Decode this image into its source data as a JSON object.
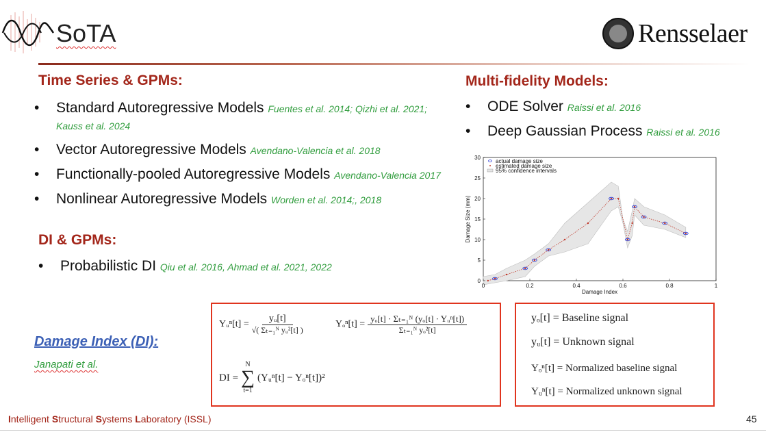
{
  "header": {
    "title": "SoTA",
    "brand": "Rensselaer",
    "logo_icon": "wave-icon",
    "seal_icon": "rpi-seal-icon"
  },
  "left": {
    "section1": {
      "heading": "Time Series & GPMs:",
      "items": [
        {
          "text": "Standard Autoregressive Models",
          "cite": "Fuentes et al. 2014; Qizhi et al. 2021; Kauss et al. 2024"
        },
        {
          "text": "Vector Autoregressive Models",
          "cite": "Avendano-Valencia et al. 2018"
        },
        {
          "text": "Functionally-pooled Autoregressive Models",
          "cite": "Avendano-Valencia 2017"
        },
        {
          "text": "Nonlinear Autoregressive Models",
          "cite": "Worden et al. 2014;, 2018"
        }
      ]
    },
    "section2": {
      "heading": "DI & GPMs:",
      "items": [
        {
          "text": "Probabilistic DI",
          "cite": "Qiu et al. 2016, Ahmad et al. 2021, 2022"
        }
      ]
    }
  },
  "right": {
    "heading": "Multi-fidelity Models:",
    "items": [
      {
        "text": "ODE Solver",
        "cite": "Raissi et al. 2016"
      },
      {
        "text": "Deep Gaussian Process",
        "cite": "Raissi et al. 2016"
      }
    ]
  },
  "damage_index": {
    "title": "Damage Index (DI):",
    "author": "Janapati et al."
  },
  "formulas": {
    "yu_lhs": "Yᵤⁿ[t] =",
    "yu_num": "yᵤ[t]",
    "yu_den": "√( Σₜ₌₁ᴺ yᵤ²[t] )",
    "yo_lhs": "Yₒⁿ[t] =",
    "yo_num": "yₒ[t] · Σₜ₌₁ᴺ (yₒ[t] · Yᵤⁿ[t])",
    "yo_den": "Σₜ₌₁ᴺ yₒ²[t]",
    "di_lhs": "DI =",
    "di_sum_top": "N",
    "di_sum_bottom": "t=1",
    "di_body": "(Yᵤⁿ[t] − Yₒⁿ[t])²"
  },
  "legend_defs": [
    {
      "sym": "yₒ[t]",
      "text": "= Baseline signal"
    },
    {
      "sym": "yᵤ[t]",
      "text": "= Unknown signal"
    },
    {
      "sym": "Yₒⁿ[t]",
      "text": "= Normalized baseline signal"
    },
    {
      "sym": "Yᵤⁿ[t]",
      "text": "= Normalized unknown signal"
    }
  ],
  "footer": {
    "lab_parts": [
      "I",
      "ntelligent ",
      "S",
      "tructural ",
      "S",
      "ystems ",
      "L",
      "aboratory (ISSL)"
    ],
    "page": "45"
  },
  "chart_data": {
    "type": "scatter",
    "xlabel": "Damage Index",
    "ylabel": "Damage Size (mm)",
    "xlim": [
      0,
      1
    ],
    "ylim": [
      0,
      30
    ],
    "xticks": [
      0,
      0.2,
      0.4,
      0.6,
      0.8,
      1
    ],
    "xtick_labels": [
      "0",
      "0.2",
      "0.4",
      "0.6",
      "0.8",
      "1"
    ],
    "yticks": [
      0,
      5,
      10,
      15,
      20,
      25,
      30
    ],
    "legend": [
      "actual damage size",
      "estimated damage size",
      "95% confidence intervals"
    ],
    "legend_position": "top-left",
    "series": [
      {
        "name": "actual damage size",
        "x": [
          0.05,
          0.18,
          0.22,
          0.28,
          0.55,
          0.62,
          0.65,
          0.69,
          0.78,
          0.87
        ],
        "y": [
          0.5,
          3,
          5,
          7.5,
          20,
          10,
          18,
          15.5,
          14,
          11.5
        ]
      },
      {
        "name": "estimated damage size",
        "x": [
          0.02,
          0.05,
          0.1,
          0.18,
          0.22,
          0.28,
          0.35,
          0.45,
          0.55,
          0.58,
          0.62,
          0.64,
          0.65,
          0.69,
          0.78,
          0.87
        ],
        "y": [
          0,
          0.5,
          1.5,
          3,
          5,
          7.5,
          10,
          14,
          20,
          20,
          10,
          14,
          18,
          15.5,
          14,
          11.5
        ]
      },
      {
        "name": "95% confidence intervals",
        "x": [
          0.0,
          0.05,
          0.1,
          0.18,
          0.22,
          0.28,
          0.35,
          0.45,
          0.55,
          0.58,
          0.6,
          0.62,
          0.64,
          0.65,
          0.69,
          0.78,
          0.87
        ],
        "lower": [
          -1,
          -0.5,
          0,
          1,
          3.5,
          6,
          7,
          9,
          17,
          18,
          14,
          8,
          11,
          16,
          13.5,
          12.5,
          10.5
        ],
        "upper": [
          1,
          1.5,
          3,
          5,
          6.5,
          9,
          14,
          19,
          24,
          23,
          15,
          12,
          17,
          20,
          18,
          16,
          13
        ]
      }
    ]
  }
}
